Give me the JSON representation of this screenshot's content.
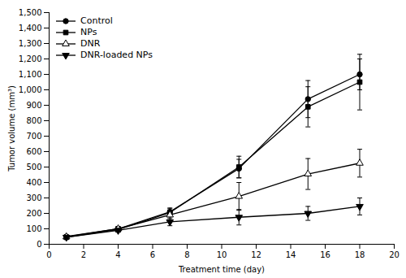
{
  "chart_data": {
    "type": "line",
    "xlabel": "Treatment time (day)",
    "ylabel": "Tumor volume (mm³)",
    "x": [
      1,
      4,
      7,
      11,
      15,
      18
    ],
    "series": [
      {
        "name": "Control",
        "color": "#000000",
        "marker": "circle",
        "values": [
          50,
          100,
          210,
          490,
          940,
          1100
        ],
        "yerr": [
          10,
          15,
          25,
          60,
          120,
          100
        ]
      },
      {
        "name": "NPs",
        "color": "#000000",
        "marker": "square",
        "values": [
          45,
          95,
          205,
          500,
          890,
          1050
        ],
        "yerr": [
          10,
          15,
          25,
          70,
          130,
          180
        ]
      },
      {
        "name": "DNR",
        "color": "#000000",
        "marker": "triangle-open",
        "values": [
          48,
          100,
          190,
          310,
          455,
          525
        ],
        "yerr": [
          10,
          15,
          30,
          90,
          100,
          90
        ]
      },
      {
        "name": "DNR-loaded NPs",
        "color": "#000000",
        "marker": "triangle-down",
        "values": [
          45,
          90,
          145,
          175,
          200,
          245
        ],
        "yerr": [
          8,
          12,
          25,
          50,
          45,
          55
        ]
      }
    ],
    "xlim": [
      0,
      20
    ],
    "ylim": [
      0,
      1500
    ],
    "xticks": [
      0,
      2,
      4,
      6,
      8,
      10,
      12,
      14,
      16,
      18,
      20
    ],
    "yticks": [
      0,
      100,
      200,
      300,
      400,
      500,
      600,
      700,
      800,
      900,
      {
        "value": 1000,
        "label": "1,000"
      },
      {
        "value": 1100,
        "label": "1,100"
      },
      {
        "value": 1200,
        "label": "1,200"
      },
      {
        "value": 1300,
        "label": "1,300"
      },
      {
        "value": 1400,
        "label": "1,400"
      },
      {
        "value": 1500,
        "label": "1,500"
      }
    ],
    "legend": "top-left",
    "grid": false
  }
}
